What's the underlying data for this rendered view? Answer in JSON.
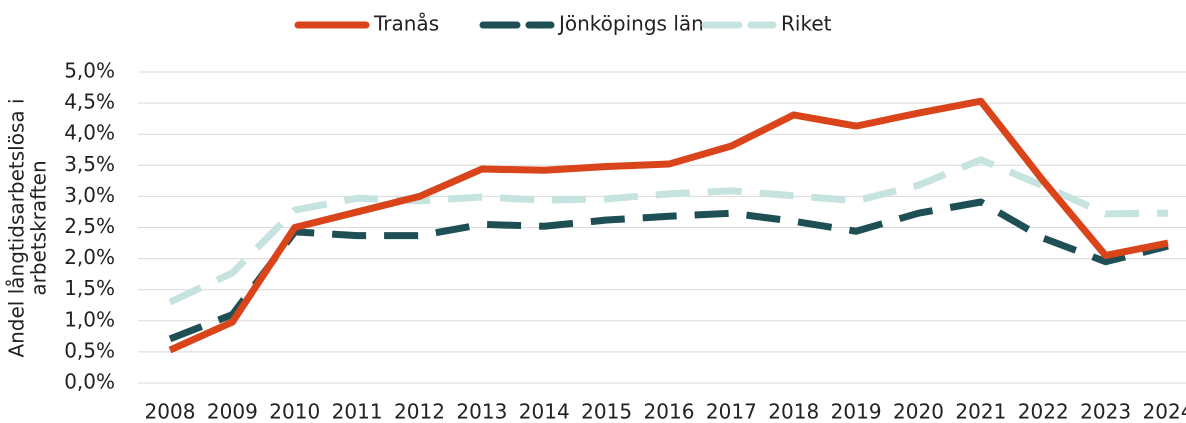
{
  "chart_data": {
    "type": "line",
    "ylabel": [
      "Andel långtidsarbetslösa i",
      "arbetskraften"
    ],
    "categories": [
      "2008",
      "2009",
      "2010",
      "2011",
      "2012",
      "2013",
      "2014",
      "2015",
      "2016",
      "2017",
      "2018",
      "2019",
      "2020",
      "2021",
      "2022",
      "2023",
      "2024"
    ],
    "series": [
      {
        "name": "Tranås",
        "color": "#d9441a",
        "dashed": false,
        "values": [
          0.53,
          0.98,
          2.5,
          2.75,
          3.0,
          3.44,
          3.42,
          3.48,
          3.52,
          3.81,
          4.31,
          4.13,
          4.34,
          4.53,
          3.25,
          2.05,
          2.25
        ]
      },
      {
        "name": "Jönköpings län",
        "color": "#1d4f55",
        "dashed": true,
        "values": [
          0.71,
          1.1,
          2.43,
          2.37,
          2.37,
          2.55,
          2.52,
          2.62,
          2.68,
          2.73,
          2.6,
          2.44,
          2.73,
          2.91,
          2.33,
          1.95,
          2.2
        ]
      },
      {
        "name": "Riket",
        "color": "#c5e3df",
        "dashed": true,
        "values": [
          1.3,
          1.77,
          2.78,
          2.97,
          2.93,
          2.99,
          2.94,
          2.96,
          3.04,
          3.09,
          3.01,
          2.93,
          3.18,
          3.59,
          3.17,
          2.72,
          2.73
        ]
      }
    ],
    "ylim": [
      0,
      5
    ],
    "yticks": [
      {
        "value": 0,
        "label": "0,0%"
      },
      {
        "value": 0.5,
        "label": "0,5%"
      },
      {
        "value": 1,
        "label": "1,0%"
      },
      {
        "value": 1.5,
        "label": "1,5%"
      },
      {
        "value": 2,
        "label": "2,0%"
      },
      {
        "value": 2.5,
        "label": "2,5%"
      },
      {
        "value": 3,
        "label": "3,0%"
      },
      {
        "value": 3.5,
        "label": "3,5%"
      },
      {
        "value": 4,
        "label": "4,0%"
      },
      {
        "value": 4.5,
        "label": "4,5%"
      },
      {
        "value": 5,
        "label": "5,0%"
      }
    ],
    "grid": true,
    "legend": "top"
  }
}
